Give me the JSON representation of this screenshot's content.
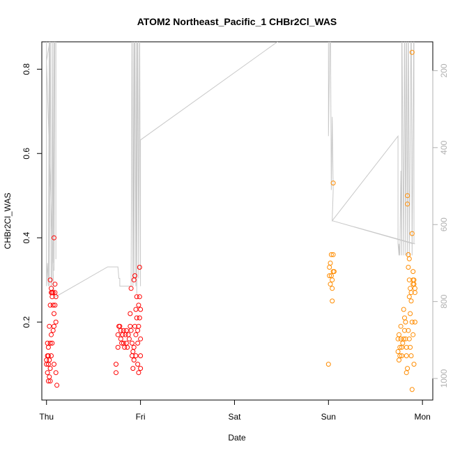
{
  "chart_data": {
    "type": "scatter",
    "title": "ATOM2 Northeast_Pacific_1 CHBr2Cl_WAS",
    "xlabel": "Date",
    "ylabel": "CHBr2Cl_WAS",
    "x_ticks": [
      {
        "day": 0,
        "label": "Thu"
      },
      {
        "day": 1,
        "label": "Fri"
      },
      {
        "day": 2,
        "label": "Sat"
      },
      {
        "day": 3,
        "label": "Sun"
      },
      {
        "day": 4,
        "label": "Mon"
      }
    ],
    "xlim": [
      -0.05,
      4.11
    ],
    "ylim": [
      0.015,
      0.865
    ],
    "y_ticks": [
      0.2,
      0.4,
      0.6,
      0.8
    ],
    "y2_ticks": [
      200,
      400,
      600,
      800,
      1000
    ],
    "y2lim": [
      1056,
      125
    ],
    "colors": {
      "red": "#ff0000",
      "orange": "#ff8c00",
      "altitude": "#c8c8c8"
    },
    "series": [
      {
        "color": "red",
        "points": [
          [
            0.0,
            0.1
          ],
          [
            0.0,
            0.11
          ],
          [
            0.01,
            0.08
          ],
          [
            0.01,
            0.12
          ],
          [
            0.01,
            0.15
          ],
          [
            0.02,
            0.06
          ],
          [
            0.02,
            0.1
          ],
          [
            0.02,
            0.12
          ],
          [
            0.02,
            0.14
          ],
          [
            0.03,
            0.19
          ],
          [
            0.03,
            0.11
          ],
          [
            0.03,
            0.07
          ],
          [
            0.04,
            0.09
          ],
          [
            0.04,
            0.06
          ],
          [
            0.04,
            0.15
          ],
          [
            0.04,
            0.3
          ],
          [
            0.04,
            0.24
          ],
          [
            0.05,
            0.28
          ],
          [
            0.05,
            0.17
          ],
          [
            0.05,
            0.12
          ],
          [
            0.05,
            0.27
          ],
          [
            0.06,
            0.27
          ],
          [
            0.06,
            0.26
          ],
          [
            0.06,
            0.15
          ],
          [
            0.07,
            0.18
          ],
          [
            0.07,
            0.24
          ],
          [
            0.07,
            0.27
          ],
          [
            0.08,
            0.22
          ],
          [
            0.08,
            0.19
          ],
          [
            0.08,
            0.1
          ],
          [
            0.08,
            0.4
          ],
          [
            0.09,
            0.24
          ],
          [
            0.09,
            0.29
          ],
          [
            0.09,
            0.27
          ],
          [
            0.1,
            0.08
          ],
          [
            0.1,
            0.2
          ],
          [
            0.1,
            0.26
          ],
          [
            0.11,
            0.05
          ],
          [
            0.74,
            0.1
          ],
          [
            0.74,
            0.08
          ],
          [
            0.76,
            0.14
          ],
          [
            0.76,
            0.17
          ],
          [
            0.77,
            0.19
          ],
          [
            0.78,
            0.19
          ],
          [
            0.79,
            0.18
          ],
          [
            0.79,
            0.16
          ],
          [
            0.8,
            0.15
          ],
          [
            0.81,
            0.17
          ],
          [
            0.82,
            0.18
          ],
          [
            0.82,
            0.15
          ],
          [
            0.83,
            0.14
          ],
          [
            0.84,
            0.17
          ],
          [
            0.85,
            0.18
          ],
          [
            0.85,
            0.15
          ],
          [
            0.86,
            0.14
          ],
          [
            0.87,
            0.17
          ],
          [
            0.88,
            0.16
          ],
          [
            0.89,
            0.19
          ],
          [
            0.89,
            0.22
          ],
          [
            0.9,
            0.18
          ],
          [
            0.91,
            0.15
          ],
          [
            0.91,
            0.12
          ],
          [
            0.92,
            0.13
          ],
          [
            0.92,
            0.09
          ],
          [
            0.93,
            0.11
          ],
          [
            0.93,
            0.14
          ],
          [
            0.94,
            0.19
          ],
          [
            0.95,
            0.17
          ],
          [
            0.95,
            0.23
          ],
          [
            0.95,
            0.12
          ],
          [
            0.96,
            0.26
          ],
          [
            0.96,
            0.21
          ],
          [
            0.97,
            0.18
          ],
          [
            0.97,
            0.15
          ],
          [
            0.97,
            0.1
          ],
          [
            0.98,
            0.24
          ],
          [
            0.98,
            0.19
          ],
          [
            0.98,
            0.08
          ],
          [
            0.99,
            0.26
          ],
          [
            0.99,
            0.21
          ],
          [
            1.0,
            0.16
          ],
          [
            1.0,
            0.12
          ],
          [
            1.0,
            0.09
          ],
          [
            1.0,
            0.23
          ],
          [
            0.99,
            0.33
          ],
          [
            0.9,
            0.28
          ],
          [
            0.93,
            0.3
          ],
          [
            0.94,
            0.31
          ]
        ]
      },
      {
        "color": "orange",
        "points": [
          [
            3.0,
            0.1
          ],
          [
            3.01,
            0.31
          ],
          [
            3.01,
            0.33
          ],
          [
            3.02,
            0.29
          ],
          [
            3.02,
            0.34
          ],
          [
            3.03,
            0.31
          ],
          [
            3.03,
            0.36
          ],
          [
            3.04,
            0.3
          ],
          [
            3.04,
            0.28
          ],
          [
            3.05,
            0.53
          ],
          [
            3.05,
            0.32
          ],
          [
            3.05,
            0.36
          ],
          [
            3.04,
            0.25
          ],
          [
            3.06,
            0.32
          ],
          [
            3.74,
            0.16
          ],
          [
            3.74,
            0.13
          ],
          [
            3.75,
            0.17
          ],
          [
            3.75,
            0.11
          ],
          [
            3.76,
            0.12
          ],
          [
            3.76,
            0.14
          ],
          [
            3.77,
            0.19
          ],
          [
            3.77,
            0.16
          ],
          [
            3.78,
            0.14
          ],
          [
            3.78,
            0.12
          ],
          [
            3.79,
            0.15
          ],
          [
            3.8,
            0.16
          ],
          [
            3.8,
            0.23
          ],
          [
            3.81,
            0.21
          ],
          [
            3.81,
            0.18
          ],
          [
            3.82,
            0.2
          ],
          [
            3.82,
            0.16
          ],
          [
            3.83,
            0.14
          ],
          [
            3.83,
            0.12
          ],
          [
            3.83,
            0.08
          ],
          [
            3.84,
            0.5
          ],
          [
            3.84,
            0.48
          ],
          [
            3.85,
            0.36
          ],
          [
            3.85,
            0.33
          ],
          [
            3.86,
            0.35
          ],
          [
            3.86,
            0.3
          ],
          [
            3.87,
            0.28
          ],
          [
            3.87,
            0.22
          ],
          [
            3.88,
            0.27
          ],
          [
            3.88,
            0.25
          ],
          [
            3.89,
            0.41
          ],
          [
            3.89,
            0.2
          ],
          [
            3.9,
            0.29
          ],
          [
            3.9,
            0.32
          ],
          [
            3.9,
            0.3
          ],
          [
            3.91,
            0.29
          ],
          [
            3.92,
            0.28
          ],
          [
            3.92,
            0.27
          ],
          [
            3.89,
            0.04
          ],
          [
            3.91,
            0.1
          ],
          [
            3.89,
            0.84
          ],
          [
            3.86,
            0.16
          ],
          [
            3.87,
            0.14
          ],
          [
            3.88,
            0.12
          ],
          [
            3.84,
            0.09
          ],
          [
            3.85,
            0.18
          ],
          [
            3.86,
            0.26
          ],
          [
            3.9,
            0.17
          ],
          [
            3.91,
            0.3
          ],
          [
            3.92,
            0.2
          ]
        ]
      }
    ],
    "altitude": [
      [
        0.0,
        30
      ],
      [
        0.0,
        760
      ],
      [
        0.01,
        700
      ],
      [
        0.02,
        760
      ],
      [
        0.03,
        30
      ],
      [
        0.03,
        760
      ],
      [
        0.04,
        30
      ],
      [
        0.05,
        760
      ],
      [
        0.06,
        740
      ],
      [
        0.06,
        30
      ],
      [
        0.07,
        700
      ],
      [
        0.08,
        30
      ],
      [
        0.08,
        720
      ],
      [
        0.09,
        30
      ],
      [
        0.1,
        30
      ],
      [
        0.1,
        690
      ],
      [
        0.1,
        30
      ],
      [
        0.0,
        175
      ],
      [
        0.08,
        790
      ],
      [
        0.65,
        710
      ],
      [
        0.73,
        710
      ],
      [
        0.76,
        710
      ],
      [
        0.77,
        740
      ],
      [
        0.78,
        740
      ],
      [
        0.78,
        760
      ],
      [
        0.82,
        760
      ],
      [
        0.9,
        760
      ],
      [
        0.91,
        30
      ],
      [
        0.92,
        760
      ],
      [
        0.93,
        30
      ],
      [
        0.93,
        740
      ],
      [
        0.94,
        30
      ],
      [
        0.95,
        760
      ],
      [
        0.96,
        30
      ],
      [
        0.96,
        780
      ],
      [
        0.97,
        30
      ],
      [
        0.98,
        740
      ],
      [
        0.99,
        30
      ],
      [
        1.0,
        760
      ],
      [
        1.0,
        380
      ],
      [
        3.0,
        30
      ],
      [
        3.0,
        370
      ],
      [
        3.02,
        30
      ],
      [
        3.03,
        510
      ],
      [
        3.04,
        320
      ],
      [
        3.05,
        510
      ],
      [
        3.04,
        590
      ],
      [
        3.74,
        370
      ],
      [
        3.74,
        650
      ],
      [
        3.75,
        680
      ],
      [
        3.75,
        650
      ],
      [
        3.76,
        680
      ],
      [
        3.77,
        460
      ],
      [
        3.78,
        680
      ],
      [
        3.78,
        30
      ],
      [
        3.8,
        680
      ],
      [
        3.81,
        30
      ],
      [
        3.82,
        680
      ],
      [
        3.83,
        30
      ],
      [
        3.84,
        680
      ],
      [
        3.85,
        30
      ],
      [
        3.86,
        680
      ],
      [
        3.88,
        30
      ],
      [
        3.89,
        680
      ],
      [
        3.91,
        30
      ],
      [
        3.91,
        650
      ],
      [
        3.92,
        650
      ],
      [
        3.04,
        590
      ],
      [
        3.9,
        650
      ]
    ]
  }
}
